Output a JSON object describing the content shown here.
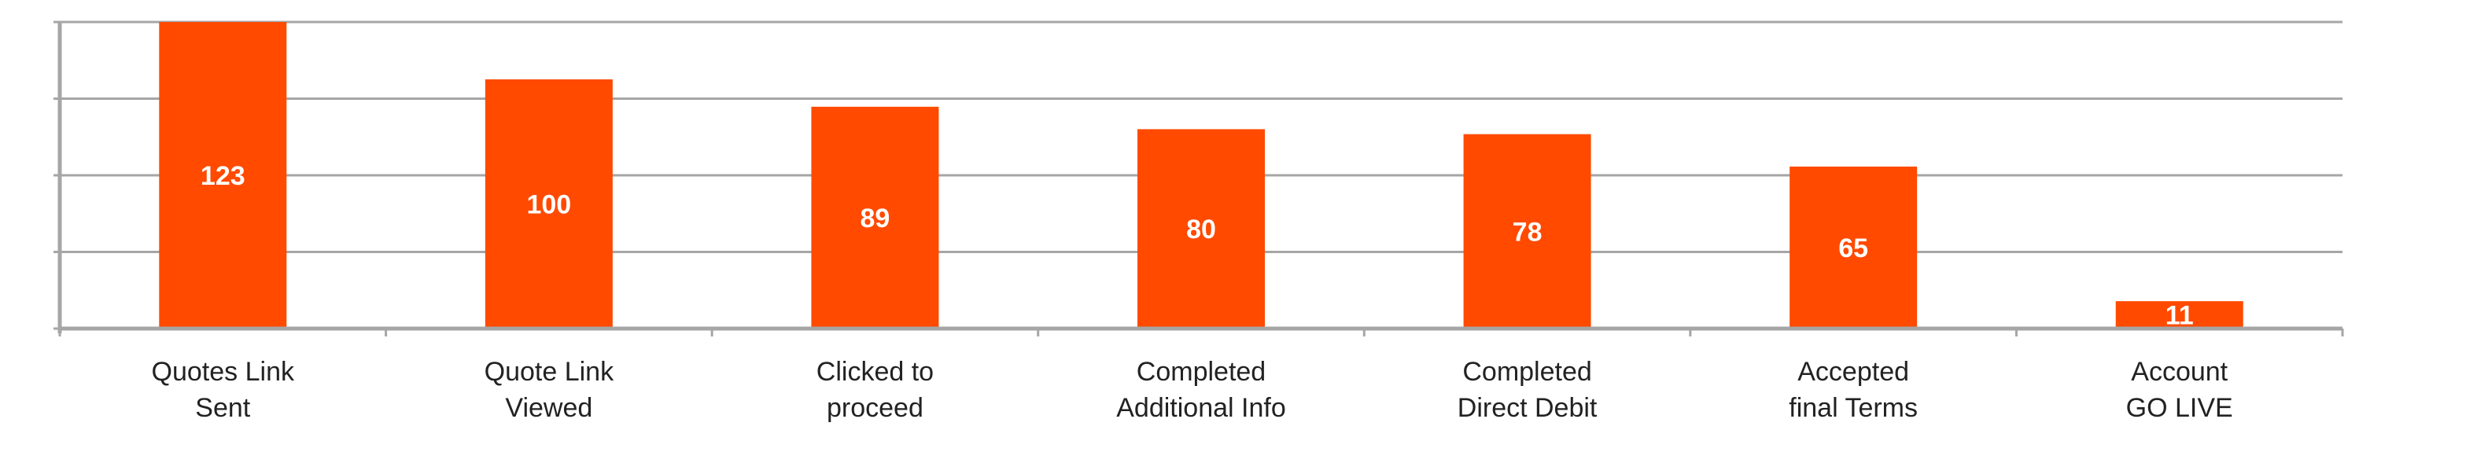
{
  "chart_data": {
    "type": "bar",
    "title": "",
    "xlabel": "",
    "ylabel": "",
    "categories": [
      [
        "Quotes Link",
        "Sent"
      ],
      [
        "Quote Link",
        "Viewed"
      ],
      [
        "Clicked to",
        "proceed"
      ],
      [
        "Completed",
        "Additional Info"
      ],
      [
        "Completed",
        "Direct Debit"
      ],
      [
        "Accepted",
        "final Terms"
      ],
      [
        "Account",
        "GO LIVE"
      ]
    ],
    "values": [
      123,
      100,
      89,
      80,
      78,
      65,
      11
    ],
    "data_labels": [
      "123",
      "100",
      "89",
      "80",
      "78",
      "65",
      "11"
    ],
    "ylim": [
      0,
      123
    ],
    "y_tick_values": [
      0,
      30.75,
      61.5,
      92.25,
      123
    ],
    "y_tick_labels_visible": false,
    "grid": true,
    "legend": "none",
    "colors": {
      "bar": "#ff4a00",
      "grid": "#a6a6a6",
      "axis": "#a6a6a6",
      "label_text": "#222222",
      "value_text": "#ffffff"
    }
  }
}
